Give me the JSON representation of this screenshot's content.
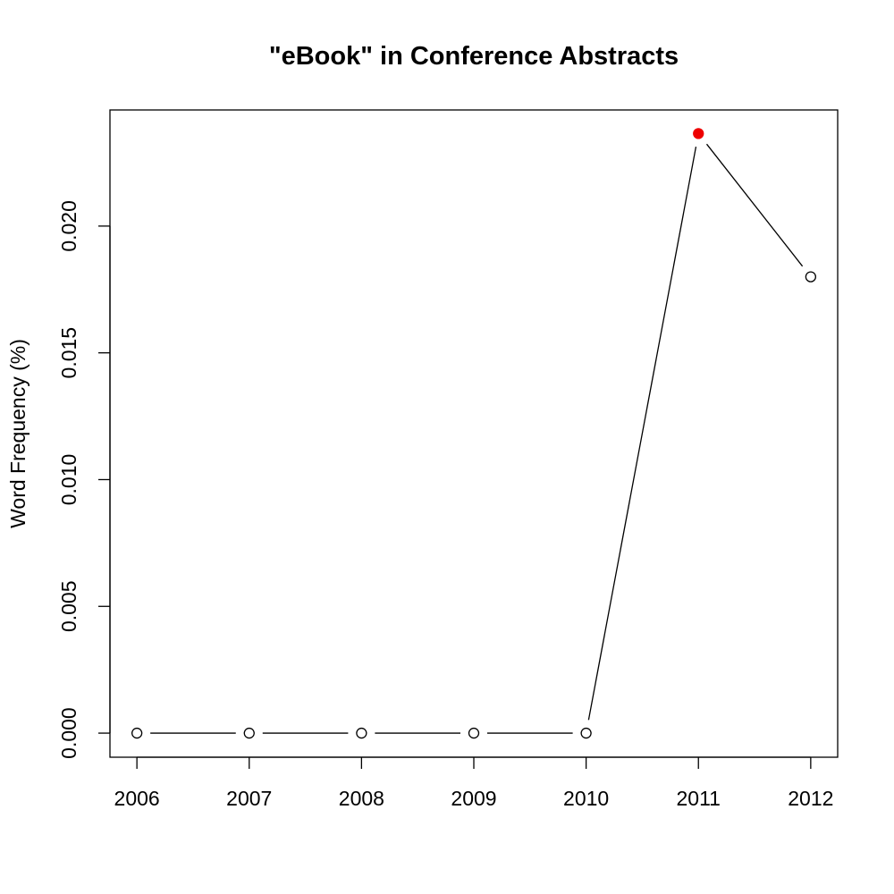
{
  "chart_data": {
    "type": "line",
    "title": "\"eBook\" in Conference Abstracts",
    "xlabel": "",
    "ylabel": "Word Frequency (%)",
    "x": [
      2006,
      2007,
      2008,
      2009,
      2010,
      2011,
      2012
    ],
    "x_tick_labels": [
      "2006",
      "2007",
      "2008",
      "2009",
      "2010",
      "2011",
      "2012"
    ],
    "y_tick_values": [
      0.0,
      0.005,
      0.01,
      0.015,
      0.02
    ],
    "y_tick_labels": [
      "0.000",
      "0.005",
      "0.010",
      "0.015",
      "0.020"
    ],
    "xlim": [
      2005.76,
      2012.24
    ],
    "ylim": [
      -0.00095,
      0.02458
    ],
    "grid": false,
    "series": [
      {
        "values": [
          0.0,
          0.0,
          0.0,
          0.0,
          0.0,
          0.02365,
          0.018
        ],
        "highlight_index": 5,
        "highlight_color": "#ee0000",
        "line_color": "#000000",
        "marker": "open-circle"
      }
    ]
  }
}
